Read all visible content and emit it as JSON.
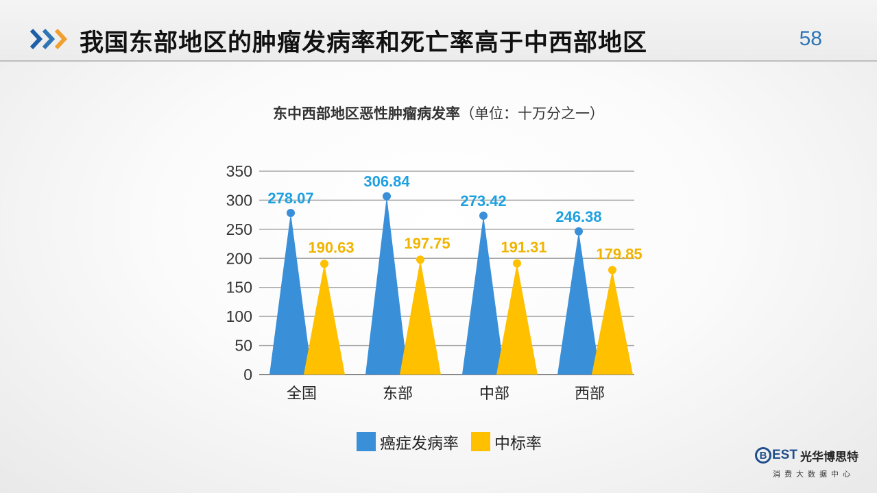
{
  "slide": {
    "title": "我国东部地区的肿瘤发病率和死亡率高于中西部地区",
    "page_number": "58"
  },
  "chart_title": {
    "bold": "东中西部地区恶性肿瘤病发率",
    "normal": "（单位：十万分之一）"
  },
  "colors": {
    "accent_blue": "#2e75b6",
    "series1": "#3a8fd9",
    "series2": "#ffc000",
    "label1": "#1ea0e0",
    "label2": "#f0b400"
  },
  "chart_data": {
    "type": "bar",
    "title": "东中西部地区恶性肿瘤病发率（单位：十万分之一）",
    "categories": [
      "全国",
      "东部",
      "中部",
      "西部"
    ],
    "series": [
      {
        "name": "癌症发病率",
        "values": [
          278.07,
          306.84,
          273.42,
          246.38
        ]
      },
      {
        "name": "中标率",
        "values": [
          190.63,
          197.75,
          191.31,
          179.85
        ]
      }
    ],
    "yticks": [
      "0",
      "50",
      "100",
      "150",
      "200",
      "250",
      "300",
      "350"
    ],
    "ylim": [
      0,
      350
    ],
    "grid": true,
    "legend": "bottom"
  },
  "legend": {
    "items": [
      "癌症发病率",
      "中标率"
    ]
  },
  "logo": {
    "brand": "EST",
    "brand_b": "B",
    "cn": "光华博思特",
    "sub": "消费大数据中心"
  }
}
